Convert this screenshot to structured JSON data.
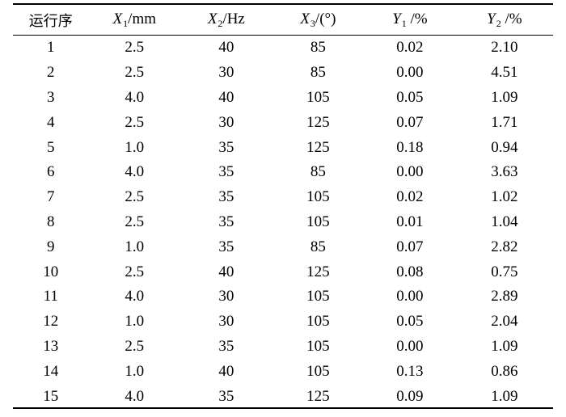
{
  "table": {
    "headers": [
      {
        "kind": "plain",
        "text": "运行序"
      },
      {
        "kind": "var",
        "var": "X",
        "sub": "1",
        "unit": "/mm"
      },
      {
        "kind": "var",
        "var": "X",
        "sub": "2",
        "unit": "/Hz"
      },
      {
        "kind": "var",
        "var": "X",
        "sub": "3",
        "unit": "/(°)"
      },
      {
        "kind": "var",
        "var": "Y",
        "sub": "1",
        "unit": " /%"
      },
      {
        "kind": "var",
        "var": "Y",
        "sub": "2",
        "unit": " /%"
      }
    ],
    "rows": [
      [
        "1",
        "2.5",
        "40",
        "85",
        "0.02",
        "2.10"
      ],
      [
        "2",
        "2.5",
        "30",
        "85",
        "0.00",
        "4.51"
      ],
      [
        "3",
        "4.0",
        "40",
        "105",
        "0.05",
        "1.09"
      ],
      [
        "4",
        "2.5",
        "30",
        "125",
        "0.07",
        "1.71"
      ],
      [
        "5",
        "1.0",
        "35",
        "125",
        "0.18",
        "0.94"
      ],
      [
        "6",
        "4.0",
        "35",
        "85",
        "0.00",
        "3.63"
      ],
      [
        "7",
        "2.5",
        "35",
        "105",
        "0.02",
        "1.02"
      ],
      [
        "8",
        "2.5",
        "35",
        "105",
        "0.01",
        "1.04"
      ],
      [
        "9",
        "1.0",
        "35",
        "85",
        "0.07",
        "2.82"
      ],
      [
        "10",
        "2.5",
        "40",
        "125",
        "0.08",
        "0.75"
      ],
      [
        "11",
        "4.0",
        "30",
        "105",
        "0.00",
        "2.89"
      ],
      [
        "12",
        "1.0",
        "30",
        "105",
        "0.05",
        "2.04"
      ],
      [
        "13",
        "2.5",
        "35",
        "105",
        "0.00",
        "1.09"
      ],
      [
        "14",
        "1.0",
        "40",
        "105",
        "0.13",
        "0.86"
      ],
      [
        "15",
        "4.0",
        "35",
        "125",
        "0.09",
        "1.09"
      ]
    ]
  }
}
